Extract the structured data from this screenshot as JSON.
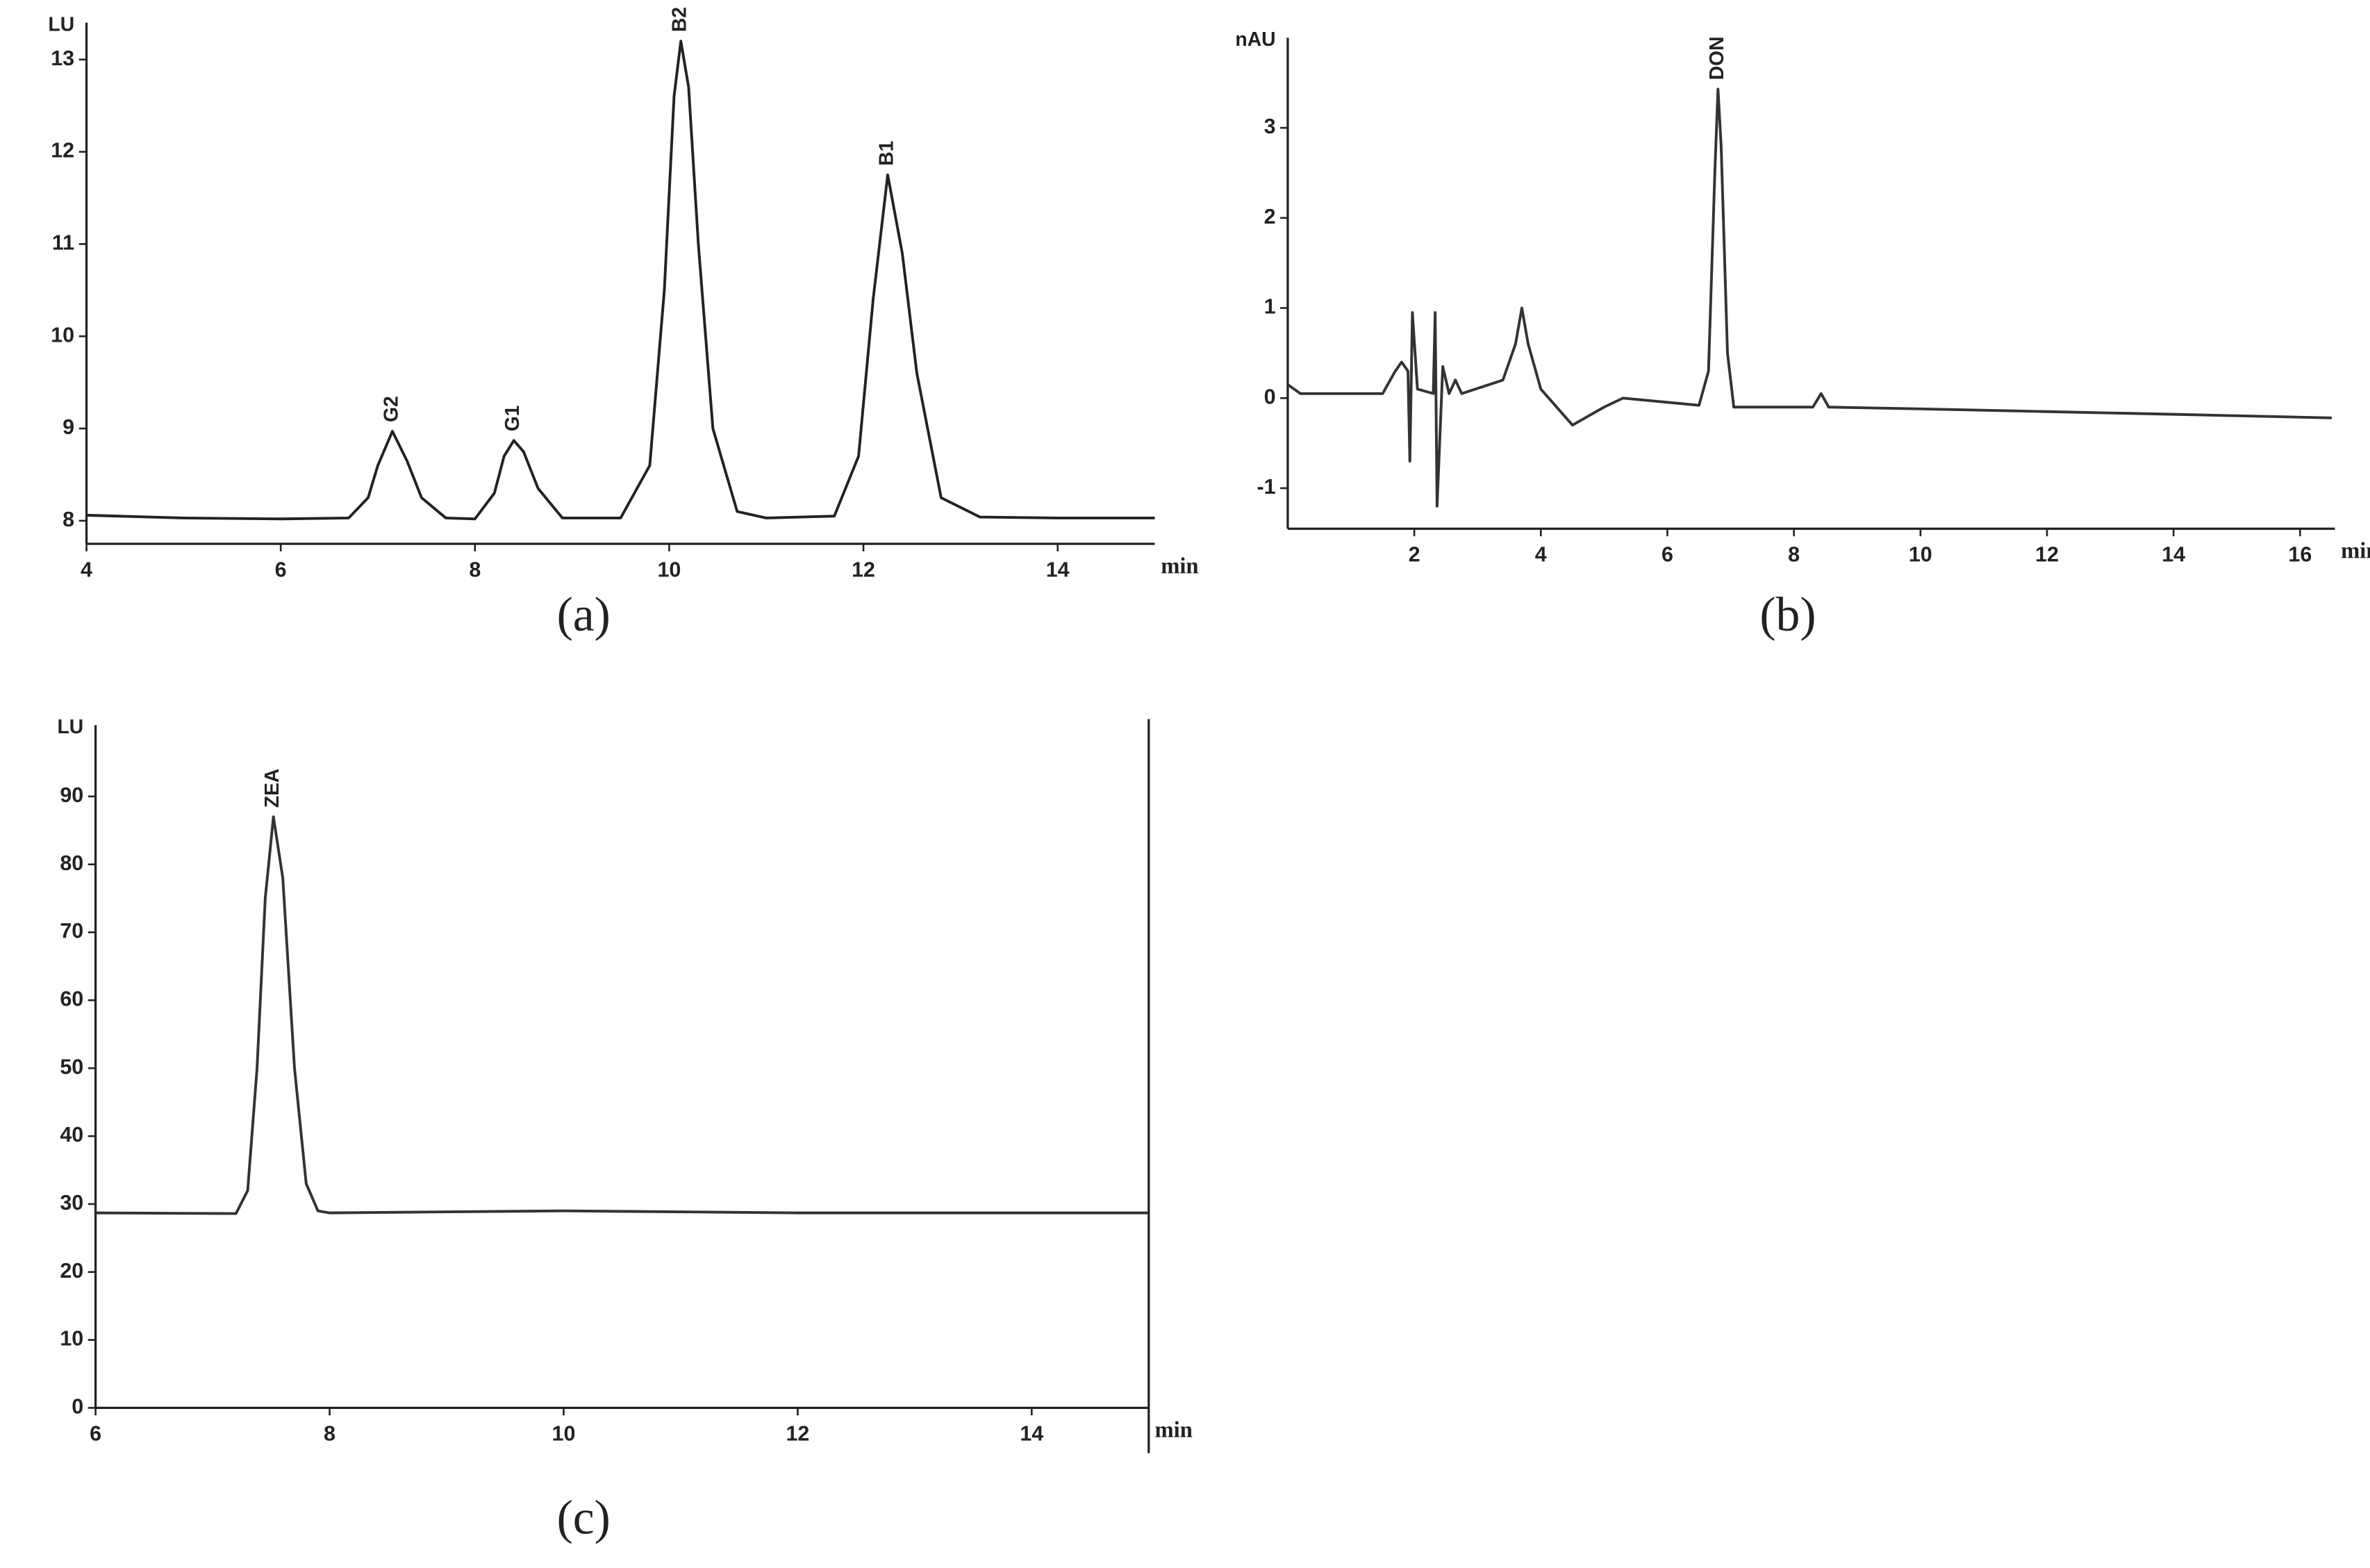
{
  "chart_data": [
    {
      "type": "line",
      "panel_label": "(a)",
      "y_label": "LU",
      "x_label": "min",
      "color": "#222222",
      "xlim": [
        4,
        15
      ],
      "xticks": [
        4,
        6,
        8,
        10,
        12,
        14
      ],
      "ylim": [
        7.75,
        13.4
      ],
      "yticks": [
        8,
        9,
        10,
        11,
        12,
        13
      ],
      "x": [
        4,
        5,
        6,
        6.7,
        6.9,
        7.0,
        7.15,
        7.3,
        7.45,
        7.7,
        8.0,
        8.2,
        8.3,
        8.4,
        8.5,
        8.65,
        8.9,
        9.5,
        9.8,
        9.95,
        10.05,
        10.12,
        10.2,
        10.3,
        10.45,
        10.7,
        11,
        11.7,
        11.95,
        12.1,
        12.25,
        12.4,
        12.55,
        12.8,
        13.2,
        14,
        15
      ],
      "values": [
        8.06,
        8.03,
        8.02,
        8.03,
        8.25,
        8.6,
        8.97,
        8.65,
        8.25,
        8.03,
        8.02,
        8.3,
        8.7,
        8.87,
        8.75,
        8.35,
        8.03,
        8.03,
        8.6,
        10.5,
        12.6,
        13.2,
        12.7,
        11.0,
        9.0,
        8.1,
        8.03,
        8.05,
        8.7,
        10.4,
        11.75,
        10.9,
        9.6,
        8.25,
        8.04,
        8.03,
        8.03
      ],
      "peaks": [
        {
          "label": "G2",
          "x": 7.15,
          "y": 8.97
        },
        {
          "label": "G1",
          "x": 8.4,
          "y": 8.87
        },
        {
          "label": "B2",
          "x": 10.12,
          "y": 13.2
        },
        {
          "label": "B1",
          "x": 12.25,
          "y": 11.75
        }
      ]
    },
    {
      "type": "line",
      "panel_label": "(b)",
      "y_label": "nAU",
      "x_label": "min",
      "color": "#333333",
      "xlim": [
        0,
        16.55
      ],
      "xticks": [
        2,
        4,
        6,
        8,
        10,
        12,
        14,
        16
      ],
      "ylim": [
        -1.45,
        4.0
      ],
      "yticks": [
        -1,
        0,
        1,
        2,
        3
      ],
      "x": [
        0,
        0.2,
        1.5,
        1.7,
        1.8,
        1.9,
        1.93,
        1.97,
        2.05,
        2.3,
        2.33,
        2.36,
        2.45,
        2.55,
        2.65,
        2.75,
        3.4,
        3.6,
        3.7,
        3.8,
        4.0,
        4.5,
        5.0,
        5.3,
        6.5,
        6.65,
        6.75,
        6.8,
        6.85,
        6.95,
        7.05,
        8.3,
        8.43,
        8.55,
        10,
        12,
        14,
        16.5
      ],
      "values": [
        0.15,
        0.05,
        0.05,
        0.3,
        0.4,
        0.3,
        -0.7,
        0.95,
        0.1,
        0.05,
        0.95,
        -1.2,
        0.35,
        0.05,
        0.2,
        0.05,
        0.2,
        0.6,
        1.0,
        0.6,
        0.1,
        -0.3,
        -0.1,
        0,
        -0.08,
        0.3,
        2.5,
        3.43,
        2.8,
        0.5,
        -0.1,
        -0.1,
        0.05,
        -0.1,
        -0.12,
        -0.15,
        -0.18,
        -0.22
      ],
      "peaks": [
        {
          "label": "DON",
          "x": 6.8,
          "y": 3.43
        }
      ]
    },
    {
      "type": "line",
      "panel_label": "(c)",
      "y_label": "LU",
      "x_label": "min",
      "color": "#333333",
      "xlim": [
        6,
        15
      ],
      "xticks": [
        6,
        8,
        10,
        12,
        14
      ],
      "ylim": [
        0,
        100.5
      ],
      "yticks": [
        0,
        10,
        20,
        30,
        40,
        50,
        60,
        70,
        80,
        90
      ],
      "x": [
        6,
        7.2,
        7.3,
        7.38,
        7.45,
        7.52,
        7.6,
        7.7,
        7.8,
        7.9,
        8,
        10,
        12,
        15
      ],
      "values": [
        28.7,
        28.6,
        32,
        50,
        75,
        87,
        78,
        50,
        33,
        29,
        28.7,
        29,
        28.7,
        28.7
      ],
      "peaks": [
        {
          "label": "ZEA",
          "x": 7.52,
          "y": 87
        }
      ]
    }
  ]
}
